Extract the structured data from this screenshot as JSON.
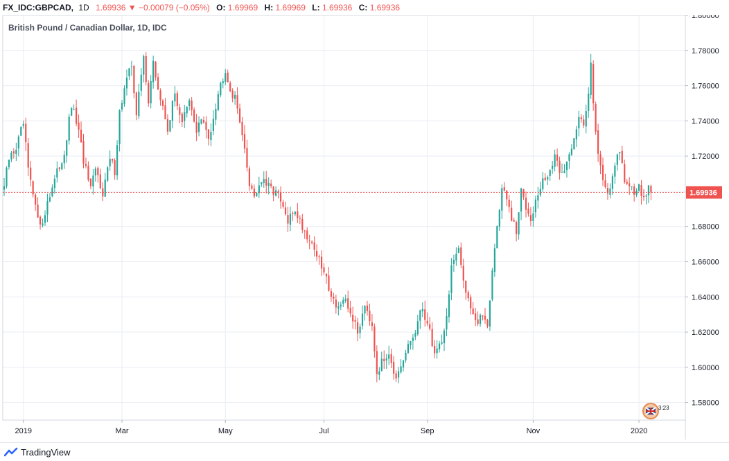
{
  "header": {
    "symbol": "FX_IDC:GBPCAD,",
    "timeframe": "1D",
    "last": "1.69936",
    "arrow": "▼",
    "change": "−0.00079 (−0.05%)",
    "o_label": "O:",
    "o_value": "1.69969",
    "h_label": "H:",
    "h_value": "1.69969",
    "l_label": "L:",
    "l_value": "1.69936",
    "c_label": "C:",
    "c_value": "1.69936"
  },
  "footer": {
    "brand": "TradingView",
    "brand_icon": "tradingview-logo-icon"
  },
  "badge": {
    "icon": "uk-flag-icon",
    "text": "3:23"
  },
  "colors": {
    "up": "#26a69a",
    "down": "#ef5350",
    "grid": "#e9ecf2",
    "axis_text": "#131722",
    "last_price_bg": "#ef5350"
  },
  "chart_data": {
    "type": "candlestick",
    "title": "British Pound / Canadian Dollar, 1D, IDC",
    "symbol": "FX_IDC:GBPCAD",
    "interval": "1D",
    "ylim": [
      1.57,
      1.8
    ],
    "y_ticks": [
      "1.80000",
      "1.78000",
      "1.76000",
      "1.74000",
      "1.72000",
      "1.70000",
      "1.68000",
      "1.66000",
      "1.64000",
      "1.62000",
      "1.60000",
      "1.58000"
    ],
    "x_ticks": [
      {
        "label": "2019",
        "index": 8
      },
      {
        "label": "Mar",
        "index": 49
      },
      {
        "label": "May",
        "index": 92
      },
      {
        "label": "Jul",
        "index": 133
      },
      {
        "label": "Sep",
        "index": 176
      },
      {
        "label": "Nov",
        "index": 220
      },
      {
        "label": "2020",
        "index": 264
      }
    ],
    "last_price": 1.69936,
    "last_price_label": "1.69936",
    "grid": true,
    "anchors": [
      [
        0,
        1.703,
        "a"
      ],
      [
        2,
        1.718,
        "a"
      ],
      [
        5,
        1.725,
        "a"
      ],
      [
        8,
        1.738,
        "a"
      ],
      [
        10,
        1.712,
        "a"
      ],
      [
        13,
        1.69,
        "a"
      ],
      [
        15,
        1.684,
        "a"
      ],
      [
        16,
        1.68,
        "a"
      ],
      [
        18,
        1.695,
        "a"
      ],
      [
        21,
        1.706,
        "a"
      ],
      [
        25,
        1.722,
        "a"
      ],
      [
        28,
        1.748,
        "a"
      ],
      [
        30,
        1.74,
        "a"
      ],
      [
        33,
        1.718,
        "a"
      ],
      [
        36,
        1.7,
        "a"
      ],
      [
        38,
        1.712,
        "a"
      ],
      [
        41,
        1.7,
        "a"
      ],
      [
        44,
        1.718,
        "a"
      ],
      [
        46,
        1.712,
        "a"
      ],
      [
        48,
        1.745,
        "a"
      ],
      [
        50,
        1.758,
        "a"
      ],
      [
        53,
        1.772,
        "a"
      ],
      [
        55,
        1.744,
        "a"
      ],
      [
        58,
        1.776,
        "a"
      ],
      [
        60,
        1.752,
        "a"
      ],
      [
        62,
        1.772,
        "a"
      ],
      [
        65,
        1.752,
        "a"
      ],
      [
        68,
        1.736,
        "a"
      ],
      [
        71,
        1.755,
        "a"
      ],
      [
        74,
        1.74,
        "a"
      ],
      [
        77,
        1.75,
        "a"
      ],
      [
        80,
        1.735,
        "a"
      ],
      [
        82,
        1.741,
        "a"
      ],
      [
        85,
        1.73,
        "a"
      ],
      [
        89,
        1.756,
        "a"
      ],
      [
        92,
        1.77,
        "a"
      ],
      [
        94,
        1.758,
        "a"
      ],
      [
        96,
        1.752,
        "a"
      ],
      [
        98,
        1.742,
        "a"
      ],
      [
        100,
        1.722,
        "a"
      ],
      [
        102,
        1.705,
        "a"
      ],
      [
        104,
        1.698,
        "a"
      ],
      [
        107,
        1.706,
        "a"
      ],
      [
        110,
        1.702,
        "a"
      ],
      [
        113,
        1.7,
        "a"
      ],
      [
        116,
        1.69,
        "a"
      ],
      [
        118,
        1.682,
        "a"
      ],
      [
        121,
        1.69,
        "a"
      ],
      [
        124,
        1.68,
        "a"
      ],
      [
        126,
        1.675,
        "a"
      ],
      [
        129,
        1.668,
        "a"
      ],
      [
        131,
        1.66,
        "a"
      ],
      [
        134,
        1.65,
        "a"
      ],
      [
        137,
        1.638,
        "a"
      ],
      [
        139,
        1.635,
        "a"
      ],
      [
        142,
        1.636,
        "a"
      ],
      [
        145,
        1.628,
        "a"
      ],
      [
        147,
        1.619,
        "a"
      ],
      [
        150,
        1.637,
        "a"
      ],
      [
        153,
        1.625,
        "a"
      ],
      [
        155,
        1.598,
        "a"
      ],
      [
        158,
        1.604,
        "a"
      ],
      [
        160,
        1.61,
        "a"
      ],
      [
        163,
        1.592,
        "a"
      ],
      [
        165,
        1.598,
        "a"
      ],
      [
        168,
        1.612,
        "a"
      ],
      [
        171,
        1.62,
        "a"
      ],
      [
        174,
        1.634,
        "a"
      ],
      [
        177,
        1.62,
        "a"
      ],
      [
        179,
        1.608,
        "a"
      ],
      [
        182,
        1.616,
        "a"
      ],
      [
        184,
        1.628,
        "a"
      ],
      [
        186,
        1.658,
        "a"
      ],
      [
        189,
        1.665,
        "a"
      ],
      [
        191,
        1.65,
        "a"
      ],
      [
        194,
        1.635,
        "a"
      ],
      [
        197,
        1.624,
        "a"
      ],
      [
        199,
        1.63,
        "a"
      ],
      [
        201,
        1.625,
        "a"
      ],
      [
        203,
        1.655,
        "a"
      ],
      [
        205,
        1.68,
        "a"
      ],
      [
        207,
        1.702,
        "a"
      ],
      [
        209,
        1.695,
        "a"
      ],
      [
        211,
        1.684,
        "a"
      ],
      [
        213,
        1.676,
        "a"
      ],
      [
        215,
        1.7,
        "a"
      ],
      [
        217,
        1.692,
        "a"
      ],
      [
        219,
        1.686,
        "a"
      ],
      [
        222,
        1.698,
        "a"
      ],
      [
        224,
        1.705,
        "a"
      ],
      [
        227,
        1.712,
        "a"
      ],
      [
        229,
        1.718,
        "a"
      ],
      [
        232,
        1.71,
        "a"
      ],
      [
        234,
        1.716,
        "a"
      ],
      [
        237,
        1.732,
        "a"
      ],
      [
        239,
        1.742,
        "a"
      ],
      [
        241,
        1.736,
        "a"
      ],
      [
        243,
        1.755,
        "a"
      ],
      [
        244,
        1.776,
        "a"
      ],
      [
        245,
        1.752,
        "a"
      ],
      [
        247,
        1.72,
        "a"
      ],
      [
        249,
        1.708,
        "a"
      ],
      [
        251,
        1.7,
        "a"
      ],
      [
        254,
        1.712,
        "a"
      ],
      [
        256,
        1.724,
        "a"
      ],
      [
        258,
        1.707,
        "a"
      ],
      [
        260,
        1.704,
        "a"
      ],
      [
        262,
        1.697,
        "a"
      ],
      [
        264,
        1.705,
        "a"
      ],
      [
        266,
        1.695,
        "a"
      ],
      [
        268,
        1.703,
        "a"
      ],
      [
        269,
        1.6994,
        "a"
      ]
    ]
  }
}
